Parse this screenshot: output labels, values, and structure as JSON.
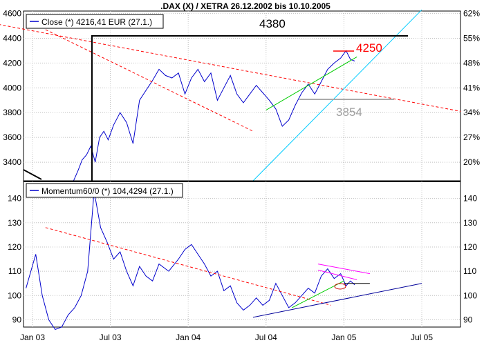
{
  "chart_data": [
    {
      "type": "line",
      "title": ".DAX (X) / XETRA 26.12.2002 bis 10.10.2005",
      "legend": "Close (*) 4216,41 EUR (27.1.)",
      "legend_position": "top-left",
      "x_ticks": [
        "Jan 03",
        "Jul 03",
        "Jan 04",
        "Jul 04",
        "Jan 05",
        "Jul 05"
      ],
      "y_ticks_left": [
        3400,
        3600,
        3800,
        4000,
        4200,
        4400,
        4600
      ],
      "y_ticks_right": [
        "20%",
        "27%",
        "34%",
        "41%",
        "48%",
        "55%",
        "62%"
      ],
      "ylim": [
        3250,
        4620
      ],
      "grid": true,
      "annotations": [
        {
          "text": "4380",
          "value": 4380,
          "color": "#000000"
        },
        {
          "text": "4250",
          "value": 4250,
          "color": "#ff0000"
        },
        {
          "text": "3854",
          "value": 3854,
          "color": "#a0a0a0"
        }
      ],
      "series": [
        {
          "name": "Close",
          "color": "#0000cc",
          "points": [
            [
              "Apr 03",
              3250
            ],
            [
              "Apr 03",
              3330
            ],
            [
              "Apr 03",
              3420
            ],
            [
              "May 03",
              3460
            ],
            [
              "May 03",
              3530
            ],
            [
              "May 03",
              3400
            ],
            [
              "Jun 03",
              3600
            ],
            [
              "Jun 03",
              3650
            ],
            [
              "Jun 03",
              3580
            ],
            [
              "Jul 03",
              3700
            ],
            [
              "Jul 03",
              3800
            ],
            [
              "Aug 03",
              3720
            ],
            [
              "Aug 03",
              3550
            ],
            [
              "Sep 03",
              3900
            ],
            [
              "Sep 03",
              3980
            ],
            [
              "Oct 03",
              4060
            ],
            [
              "Oct 03",
              4150
            ],
            [
              "Nov 03",
              4100
            ],
            [
              "Nov 03",
              4080
            ],
            [
              "Dec 03",
              4120
            ],
            [
              "Dec 03",
              3950
            ],
            [
              "Jan 04",
              4080
            ],
            [
              "Jan 04",
              4150
            ],
            [
              "Feb 04",
              4050
            ],
            [
              "Feb 04",
              4120
            ],
            [
              "Mar 04",
              3900
            ],
            [
              "Mar 04",
              4000
            ],
            [
              "Apr 04",
              4100
            ],
            [
              "Apr 04",
              3950
            ],
            [
              "May 04",
              3880
            ],
            [
              "May 04",
              3950
            ],
            [
              "Jun 04",
              4020
            ],
            [
              "Jun 04",
              3960
            ],
            [
              "Jul 04",
              3900
            ],
            [
              "Jul 04",
              3830
            ],
            [
              "Aug 04",
              3690
            ],
            [
              "Aug 04",
              3740
            ],
            [
              "Sep 04",
              3860
            ],
            [
              "Sep 04",
              3960
            ],
            [
              "Oct 04",
              4030
            ],
            [
              "Oct 04",
              3950
            ],
            [
              "Nov 04",
              4050
            ],
            [
              "Nov 04",
              4150
            ],
            [
              "Dec 04",
              4200
            ],
            [
              "Dec 04",
              4240
            ],
            [
              "Jan 05",
              4300
            ],
            [
              "Jan 05",
              4230
            ],
            [
              "Jan 05",
              4216
            ]
          ]
        },
        {
          "name": "",
          "color": "#ff0000",
          "style": "dashed",
          "points": [
            [
              "Oct 02",
              4520
            ],
            [
              "Oct 05",
              3810
            ]
          ]
        },
        {
          "name": "",
          "color": "#ff0000",
          "style": "dashed",
          "points": [
            [
              "Feb 03",
              4470
            ],
            [
              "Jun 04",
              3650
            ]
          ]
        },
        {
          "name": "",
          "color": "#00ccff",
          "points": [
            [
              "Jun 04",
              3250
            ],
            [
              "Jul 05",
              4630
            ]
          ]
        },
        {
          "name": "",
          "color": "#00cc00",
          "points": [
            [
              "Jul 04",
              3820
            ],
            [
              "Feb 05",
              4250
            ]
          ]
        }
      ]
    },
    {
      "type": "line",
      "title": "",
      "legend": "Momentum60/0 (*) 104,4294 (27.1.)",
      "legend_position": "top-left",
      "x_ticks": [
        "Jan 03",
        "Jul 03",
        "Jan 04",
        "Jul 04",
        "Jan 05",
        "Jul 05"
      ],
      "y_ticks_left": [
        90,
        100,
        110,
        120,
        130,
        140
      ],
      "y_ticks_right": [
        90,
        100,
        110,
        120,
        130,
        140
      ],
      "ylim": [
        87,
        147
      ],
      "grid": true,
      "series": [
        {
          "name": "Momentum60/0",
          "color": "#0000cc",
          "points": [
            [
              "Dec 02",
              103
            ],
            [
              "Jan 03",
              117
            ],
            [
              "Jan 03",
              100
            ],
            [
              "Feb 03",
              90
            ],
            [
              "Feb 03",
              86
            ],
            [
              "Mar 03",
              87
            ],
            [
              "Mar 03",
              92
            ],
            [
              "Apr 03",
              95
            ],
            [
              "Apr 03",
              100
            ],
            [
              "May 03",
              110
            ],
            [
              "May 03",
              143
            ],
            [
              "Jun 03",
              128
            ],
            [
              "Jun 03",
              122
            ],
            [
              "Jul 03",
              115
            ],
            [
              "Jul 03",
              118
            ],
            [
              "Aug 03",
              110
            ],
            [
              "Aug 03",
              104
            ],
            [
              "Sep 03",
              112
            ],
            [
              "Sep 03",
              108
            ],
            [
              "Oct 03",
              106
            ],
            [
              "Oct 03",
              113
            ],
            [
              "Nov 03",
              110
            ],
            [
              "Dec 03",
              115
            ],
            [
              "Dec 03",
              119
            ],
            [
              "Jan 04",
              121
            ],
            [
              "Jan 04",
              117
            ],
            [
              "Feb 04",
              113
            ],
            [
              "Feb 04",
              108
            ],
            [
              "Mar 04",
              110
            ],
            [
              "Mar 04",
              102
            ],
            [
              "Apr 04",
              104
            ],
            [
              "Apr 04",
              97
            ],
            [
              "May 04",
              94
            ],
            [
              "May 04",
              96
            ],
            [
              "Jun 04",
              99
            ],
            [
              "Jun 04",
              96
            ],
            [
              "Jul 04",
              98
            ],
            [
              "Jul 04",
              105
            ],
            [
              "Aug 04",
              100
            ],
            [
              "Aug 04",
              95
            ],
            [
              "Sep 04",
              97
            ],
            [
              "Sep 04",
              100
            ],
            [
              "Oct 04",
              103
            ],
            [
              "Oct 04",
              101
            ],
            [
              "Nov 04",
              108
            ],
            [
              "Nov 04",
              111
            ],
            [
              "Dec 04",
              107
            ],
            [
              "Dec 04",
              109
            ],
            [
              "Jan 05",
              104
            ],
            [
              "Jan 05",
              106
            ],
            [
              "Jan 05",
              104.43
            ]
          ]
        },
        {
          "name": "",
          "color": "#ff0000",
          "style": "dashed",
          "points": [
            [
              "Feb 03",
              128
            ],
            [
              "Dec 04",
              96
            ]
          ]
        },
        {
          "name": "",
          "color": "#000099",
          "points": [
            [
              "Jun 04",
              91
            ],
            [
              "Jul 05",
              105
            ]
          ]
        },
        {
          "name": "",
          "color": "#00cc00",
          "points": [
            [
              "Sep 04",
              95
            ],
            [
              "Jan 05",
              106
            ]
          ]
        },
        {
          "name": "",
          "color": "#ff00ff",
          "points": [
            [
              "Nov 04",
              113
            ],
            [
              "Mar 05",
              109
            ]
          ]
        },
        {
          "name": "",
          "color": "#ff00ff",
          "points": [
            [
              "Nov 04",
              110.5
            ],
            [
              "Feb 05",
              106.5
            ]
          ]
        },
        {
          "name": "",
          "color": "#000000",
          "points": [
            [
              "Jan 05",
              105
            ],
            [
              "Mar 05",
              105
            ]
          ]
        }
      ]
    }
  ]
}
